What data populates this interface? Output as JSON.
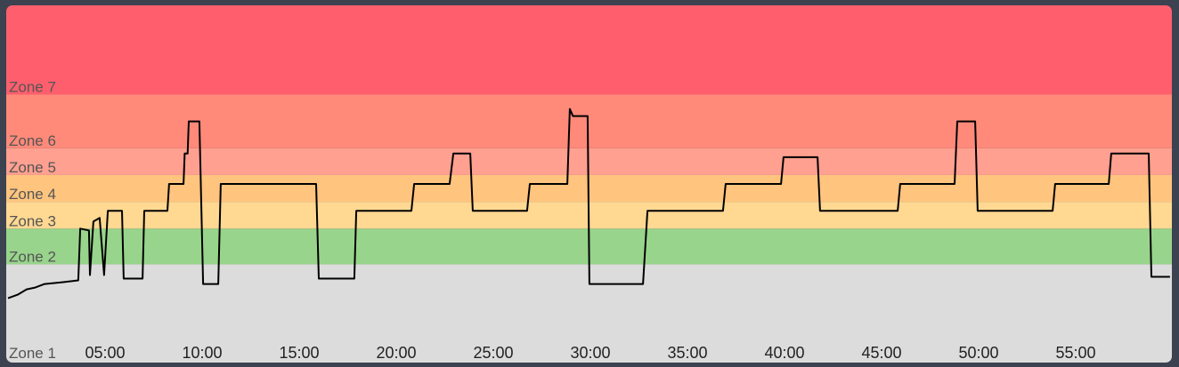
{
  "chart_data": {
    "type": "line",
    "xlim": [
      0,
      60
    ],
    "xticks": [
      {
        "value": 5,
        "label": "05:00"
      },
      {
        "value": 10,
        "label": "10:00"
      },
      {
        "value": 15,
        "label": "15:00"
      },
      {
        "value": 20,
        "label": "20:00"
      },
      {
        "value": 25,
        "label": "25:00"
      },
      {
        "value": 30,
        "label": "30:00"
      },
      {
        "value": 35,
        "label": "35:00"
      },
      {
        "value": 40,
        "label": "40:00"
      },
      {
        "value": 45,
        "label": "45:00"
      },
      {
        "value": 50,
        "label": "50:00"
      },
      {
        "value": 55,
        "label": "55:00"
      }
    ],
    "ylim": [
      0,
      200
    ],
    "zones": [
      {
        "name": "Zone 1",
        "from": 0,
        "color": "#dcdcdc"
      },
      {
        "name": "Zone 2",
        "from": 55,
        "color": "#98d48c"
      },
      {
        "name": "Zone 3",
        "from": 75,
        "color": "#ffd892"
      },
      {
        "name": "Zone 4",
        "from": 90,
        "color": "#ffc47e"
      },
      {
        "name": "Zone 5",
        "from": 105,
        "color": "#ffa090"
      },
      {
        "name": "Zone 6",
        "from": 120,
        "color": "#ff8a7a"
      },
      {
        "name": "Zone 7",
        "from": 150,
        "color": "#ff5f6d"
      }
    ],
    "color": "#000000",
    "x": [
      0,
      0.5,
      0.96,
      1.4,
      1.88,
      2.8,
      3.62,
      3.72,
      4.17,
      4.22,
      4.4,
      4.72,
      4.95,
      5.14,
      5.87,
      5.96,
      6.93,
      7.02,
      8.21,
      8.3,
      9.04,
      9.1,
      9.25,
      9.31,
      9.86,
      10.05,
      10.83,
      10.96,
      15.87,
      16.01,
      17.84,
      17.94,
      20.78,
      20.92,
      22.75,
      22.94,
      23.81,
      23.94,
      26.74,
      26.88,
      28.81,
      28.94,
      29.1,
      29.86,
      29.95,
      32.71,
      32.94,
      36.83,
      36.97,
      39.82,
      39.95,
      41.7,
      41.83,
      45.83,
      45.96,
      48.76,
      48.9,
      49.82,
      49.95,
      53.81,
      53.94,
      56.7,
      56.83,
      58.76,
      58.9,
      59.86
    ],
    "values": [
      36,
      38,
      41,
      42,
      44,
      45,
      46,
      75,
      74,
      49,
      79,
      81,
      49,
      85,
      85,
      47,
      47,
      85,
      85,
      100,
      100,
      117,
      117,
      135,
      135,
      44,
      44,
      100,
      100,
      47,
      47,
      85,
      85,
      100,
      100,
      117,
      117,
      85,
      85,
      100,
      100,
      142,
      138,
      138,
      44,
      44,
      85,
      85,
      100,
      100,
      115,
      115,
      85,
      85,
      100,
      100,
      135,
      135,
      85,
      85,
      100,
      100,
      117,
      117,
      48,
      48
    ]
  }
}
